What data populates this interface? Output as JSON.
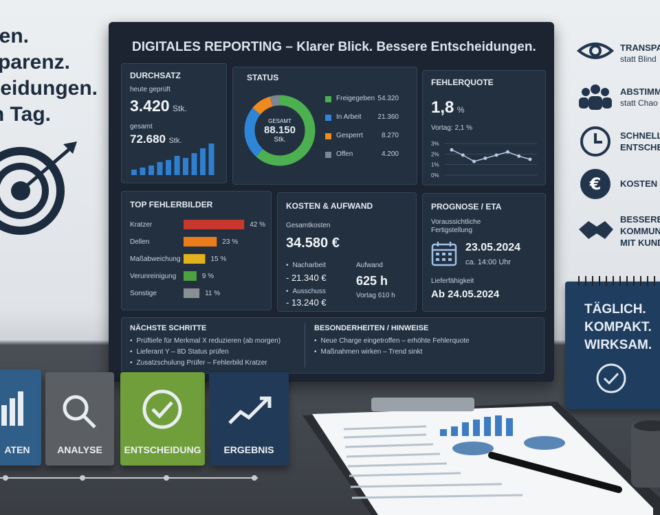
{
  "left_text": [
    "ten.",
    "sparenz.",
    "scheidungen.",
    "n Tag."
  ],
  "dashboard": {
    "title": "DIGITALES REPORTING – Klarer Blick. Bessere Entscheidungen.",
    "durchsatz": {
      "title": "DURCHSATZ",
      "today_label": "heute geprüft",
      "today_value": "3.420",
      "today_unit": "Stk.",
      "total_label": "gesamt",
      "total_value": "72.680",
      "total_unit": "Stk.",
      "bars": [
        8,
        11,
        14,
        19,
        22,
        28,
        25,
        32,
        39,
        46
      ],
      "bar_color": "#2f7fd1"
    },
    "status": {
      "title": "STATUS",
      "center_label": "GESAMT",
      "center_value": "88.150",
      "center_unit": "Stk.",
      "categories": [
        "Freigegeben",
        "In Arbeit",
        "Gesperrt",
        "Offen"
      ],
      "values": [
        54320,
        21360,
        8270,
        4200
      ],
      "value_labels": [
        "54.320",
        "21.360",
        "8.270",
        "4.200"
      ],
      "colors": [
        "#4caf50",
        "#2f86d6",
        "#ef8a1e",
        "#7d8590"
      ]
    },
    "fehlerquote": {
      "title": "FEHLERQUOTE",
      "value": "1,8",
      "unit": "%",
      "previous": "Vortag: 2,1 %",
      "chart": {
        "type": "line",
        "values": [
          2.4,
          1.9,
          1.3,
          1.6,
          1.9,
          2.2,
          1.8,
          1.5
        ],
        "ylim": [
          0,
          3
        ],
        "yticks": [
          {
            "value": 0,
            "label": "0%"
          },
          {
            "value": 1,
            "label": "1%"
          },
          {
            "value": 2,
            "label": "2%"
          },
          {
            "value": 3,
            "label": "3%"
          }
        ],
        "color": "#b9c8e6",
        "grid": true
      }
    },
    "top_fehler": {
      "title": "TOP FEHLERBILDER",
      "chart": {
        "type": "bar",
        "categories": [
          "Kratzer",
          "Dellen",
          "Maßabweichung",
          "Verunreinigung",
          "Sonstige"
        ],
        "values": [
          42,
          23,
          15,
          9,
          11
        ],
        "value_labels": [
          "42 %",
          "23 %",
          "15 %",
          "9 %",
          "11 %"
        ],
        "colors": [
          "#c8382f",
          "#ea7c1c",
          "#e3b020",
          "#4ba23f",
          "#8a8f96"
        ]
      }
    },
    "kosten": {
      "title": "KOSTEN & AUFWAND",
      "total_label": "Gesamtkosten",
      "total_value": "34.580 €",
      "items": [
        {
          "label": "Nacharbeit",
          "value": "- 21.340 €"
        },
        {
          "label": "Ausschuss",
          "value": "- 13.240 €"
        }
      ],
      "effort_label": "Aufwand",
      "effort_value": "625 h",
      "effort_previous": "Vortag 610 h"
    },
    "prognose": {
      "title": "PROGNOSE / ETA",
      "label_lines": [
        "Voraussichtliche",
        "Fertigstellung"
      ],
      "date": "23.05.2024",
      "time": "ca. 14:00 Uhr",
      "delivery_label": "Lieferfähigkeit",
      "delivery_value": "Ab 24.05.2024"
    },
    "next_steps": {
      "title": "NÄCHSTE SCHRITTE",
      "items": [
        "Prüftiefe für Merkmal X reduzieren (ab morgen)",
        "Lieferant Y – 8D Status prüfen",
        "Zusatzschulung Prüfer – Fehlerbild Kratzer"
      ]
    },
    "notes": {
      "title": "BESONDERHEITEN / HINWEISE",
      "items": [
        "Neue Charge eingetroffen – erhöhte Fehlerquote",
        "Maßnahmen wirken – Trend sinkt"
      ]
    }
  },
  "right_items": [
    [
      "TRANSPA",
      "statt Blind"
    ],
    [
      "ABSTIMM",
      "statt Chao"
    ],
    [
      "SCHNELL",
      "ENTSCHE"
    ],
    [
      "KOSTEN I"
    ],
    [
      "BESSERE",
      "KOMMUNI",
      "MIT KUND"
    ]
  ],
  "calendar": [
    "TÄGLICH.",
    "KOMPAKT.",
    "WIRKSAM."
  ],
  "blocks": [
    "ATEN",
    "ANALYSE",
    "ENTSCHEIDUNG",
    "ERGEBNIS"
  ]
}
